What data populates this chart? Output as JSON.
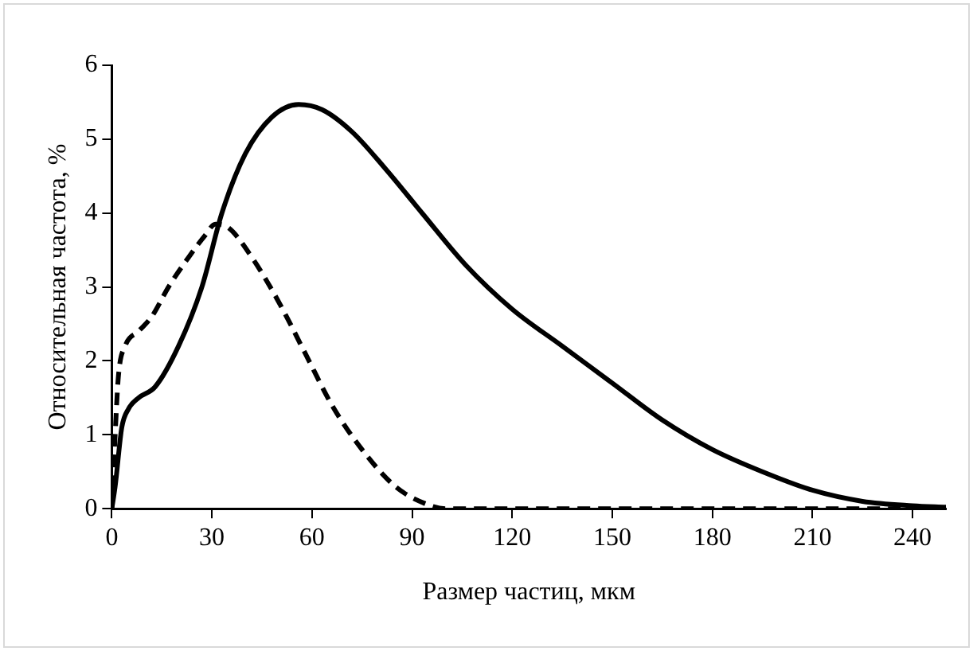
{
  "chart_data": {
    "type": "line",
    "xlabel": "Размер частиц, мкм",
    "ylabel": "Относительная частота, %",
    "xlim": [
      0,
      250
    ],
    "xticks": [
      0,
      30,
      60,
      90,
      120,
      150,
      180,
      210,
      240
    ],
    "ylim": [
      0,
      6
    ],
    "yticks": [
      0,
      1,
      2,
      3,
      4,
      5,
      6
    ],
    "grid": false,
    "legend": false,
    "marker": "none",
    "series": [
      {
        "color": "#000000",
        "line_style": "solid",
        "x": [
          0,
          1,
          3,
          5,
          8,
          13,
          20,
          27,
          33,
          40,
          48,
          56,
          63,
          72,
          82,
          93,
          106,
          120,
          135,
          150,
          165,
          180,
          195,
          210,
          225,
          240,
          250
        ],
        "values": [
          0,
          0.3,
          1.1,
          1.35,
          1.5,
          1.65,
          2.2,
          3,
          4,
          4.8,
          5.3,
          5.47,
          5.4,
          5.1,
          4.6,
          4,
          3.3,
          2.7,
          2.2,
          1.7,
          1.2,
          0.8,
          0.5,
          0.25,
          0.1,
          0.04,
          0.02
        ]
      },
      {
        "color": "#000000",
        "line_style": "dashed",
        "x": [
          0,
          1,
          2,
          4,
          8,
          12,
          17,
          23,
          28,
          31,
          35,
          42,
          50,
          58,
          66,
          75,
          85,
          95,
          100,
          250
        ],
        "values": [
          0,
          1,
          1.8,
          2.2,
          2.4,
          2.6,
          3,
          3.4,
          3.7,
          3.85,
          3.8,
          3.4,
          2.8,
          2.1,
          1.4,
          0.8,
          0.3,
          0.05,
          0,
          0
        ]
      }
    ]
  }
}
